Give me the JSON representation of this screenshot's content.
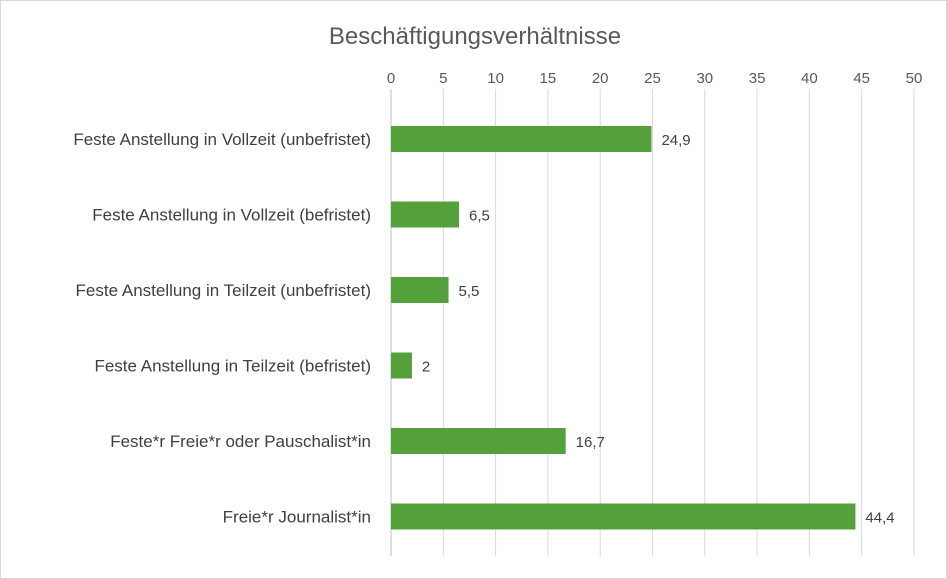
{
  "chart_data": {
    "type": "bar",
    "orientation": "horizontal",
    "title": "Beschäftigungsverhältnisse",
    "categories": [
      "Feste Anstellung in Vollzeit (unbefristet)",
      "Feste Anstellung in Vollzeit (befristet)",
      "Feste Anstellung in Teilzeit (unbefristet)",
      "Feste Anstellung in Teilzeit (befristet)",
      "Feste*r Freie*r oder Pauschalist*in",
      "Freie*r Journalist*in"
    ],
    "values": [
      24.9,
      6.5,
      5.5,
      2,
      16.7,
      44.4
    ],
    "data_labels": [
      "24,9",
      "6,5",
      "5,5",
      "2",
      "16,7",
      "44,4"
    ],
    "xlim": [
      0,
      50
    ],
    "xticks": [
      0,
      5,
      10,
      15,
      20,
      25,
      30,
      35,
      40,
      45,
      50
    ],
    "xaxis_position": "top",
    "grid": true,
    "legend": "none",
    "bar_color": "#54A03A"
  }
}
